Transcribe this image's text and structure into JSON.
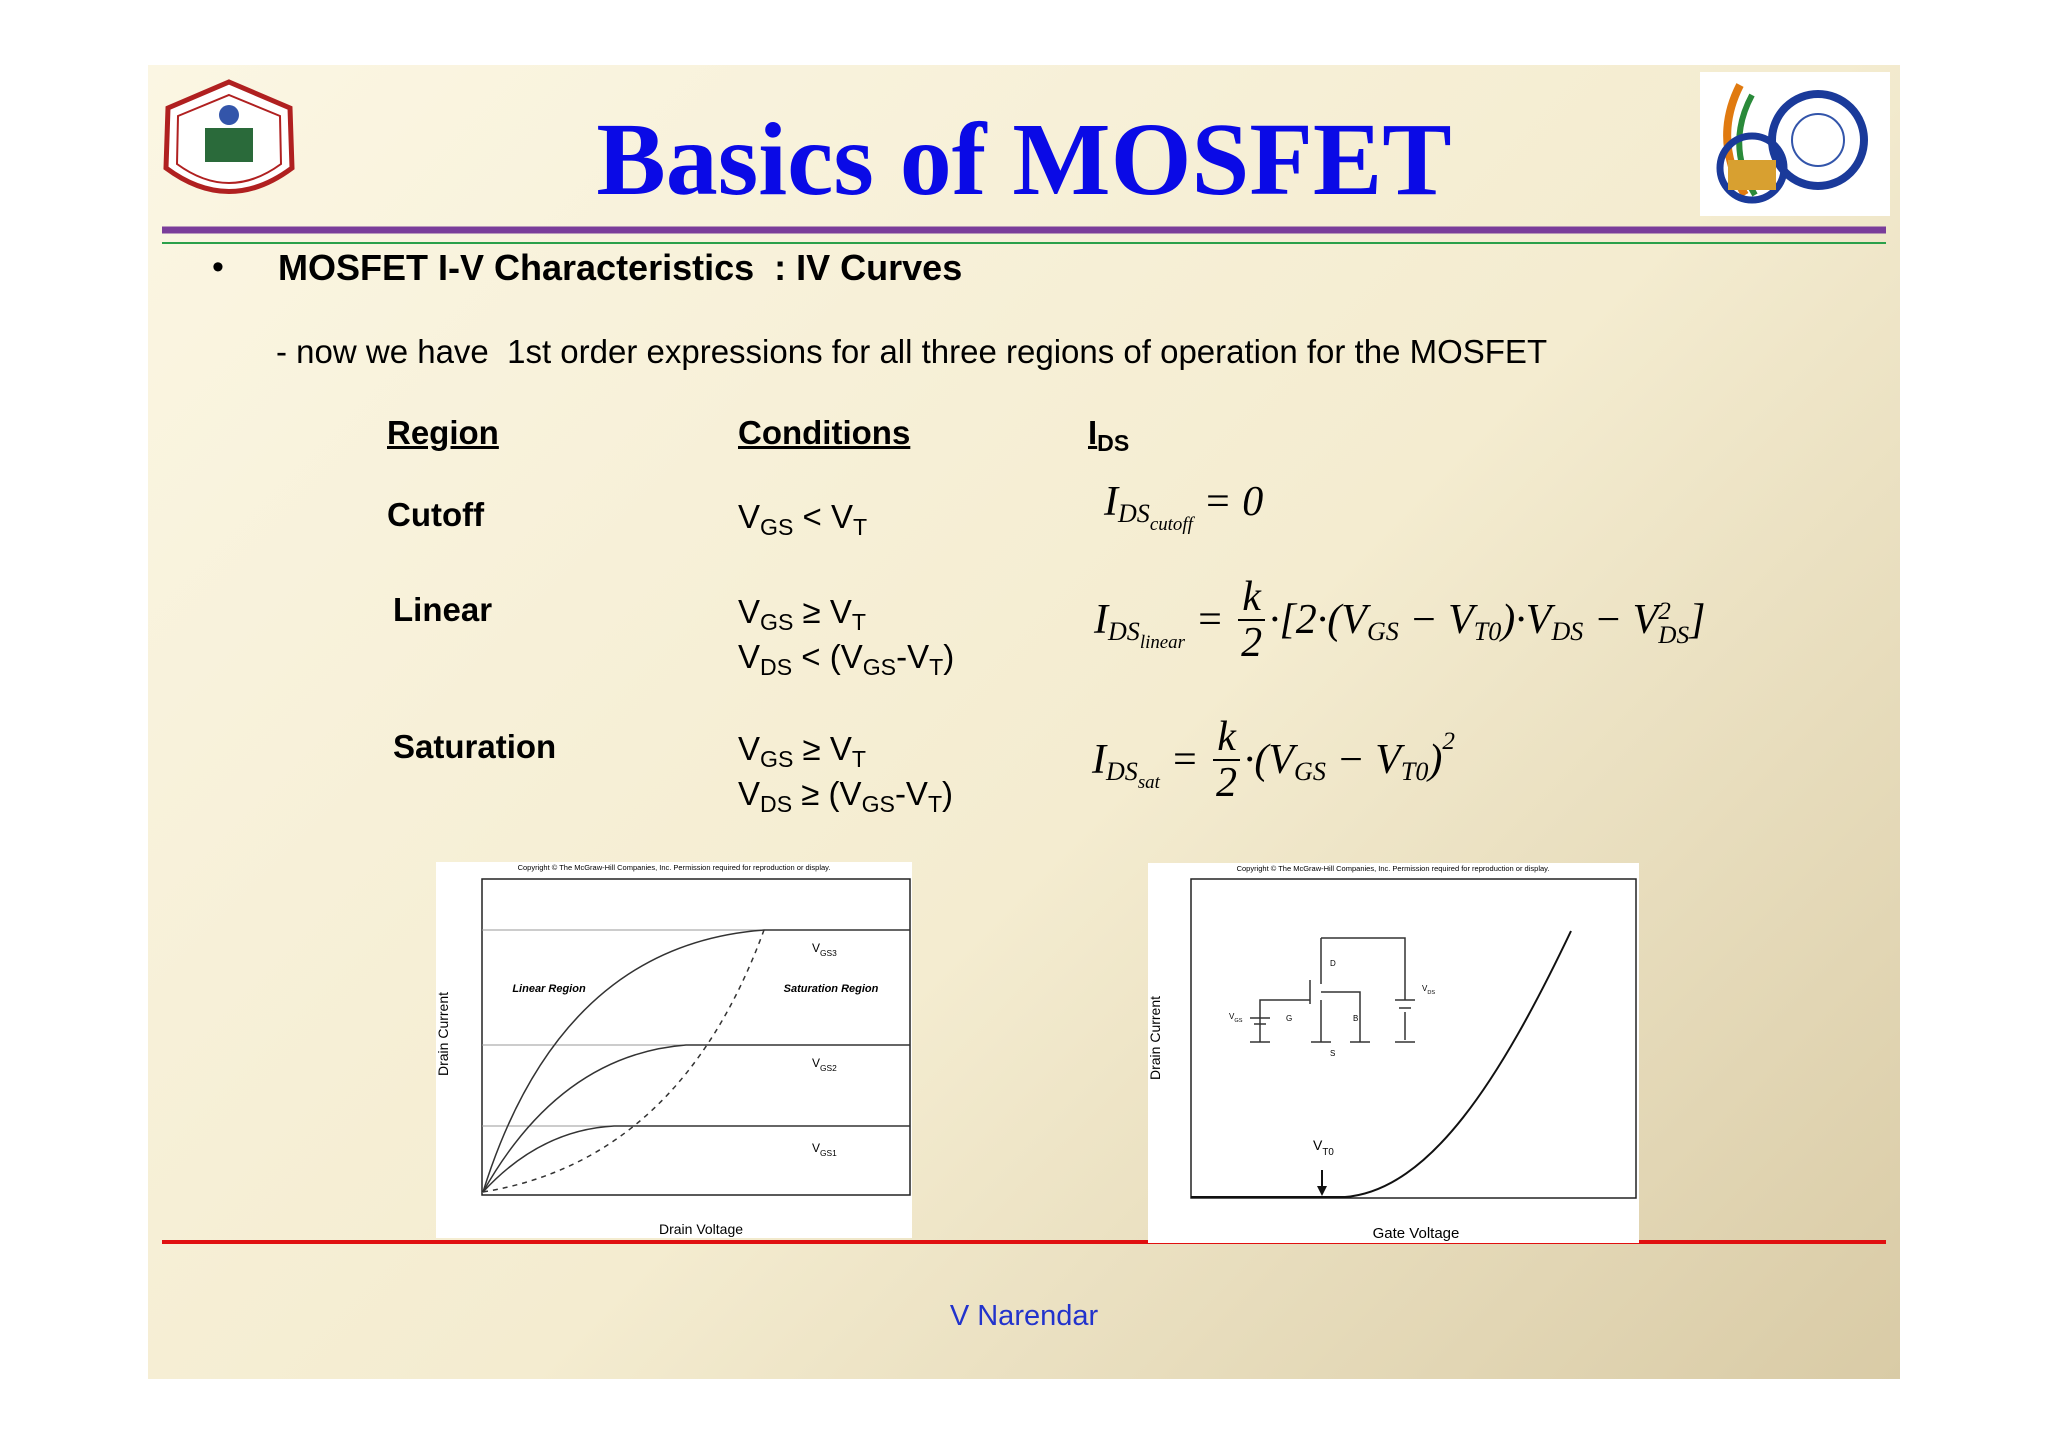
{
  "header": {
    "title": "Basics of MOSFET"
  },
  "bullet": {
    "marker": "•",
    "heading": "MOSFET I-V Characteristics  : IV Curves",
    "subtext": "- now we have  1st order expressions for all three regions of operation for the MOSFET"
  },
  "table": {
    "headers": [
      "Region",
      "Conditions"
    ],
    "ids_header": [
      "I",
      "DS"
    ],
    "rows": [
      {
        "region": "Cutoff",
        "conditions": [
          [
            "V",
            "GS",
            " < V",
            "T"
          ]
        ],
        "formula": [
          {
            "text": "I",
            "style": "base"
          },
          {
            "text": "DS",
            "style": "sub"
          },
          {
            "text": "cutoff",
            "style": "subsub"
          },
          {
            "text": " = 0",
            "style": "base"
          }
        ]
      },
      {
        "region": "Linear",
        "conditions": [
          [
            "V",
            "GS",
            " ≥ V",
            "T"
          ],
          [
            "V",
            "DS",
            " < (V",
            "GS",
            "-V",
            "T",
            ")"
          ]
        ],
        "formula": [
          {
            "text": "I",
            "style": "base"
          },
          {
            "text": "DS",
            "style": "sub"
          },
          {
            "text": "linear",
            "style": "subsub"
          },
          {
            "text": " = ",
            "style": "base"
          },
          {
            "num": "k",
            "den": "2"
          },
          {
            "text": "·[2·(V",
            "style": "base"
          },
          {
            "text": "GS",
            "style": "sub"
          },
          {
            "text": " − V",
            "style": "base"
          },
          {
            "text": "T0",
            "style": "sub"
          },
          {
            "text": ")·V",
            "style": "base"
          },
          {
            "text": "DS",
            "style": "sub"
          },
          {
            "text": " − V",
            "style": "base"
          },
          {
            "sup": "2",
            "sub": "DS"
          },
          {
            "text": "]",
            "style": "base"
          }
        ]
      },
      {
        "region": "Saturation",
        "conditions": [
          [
            "V",
            "GS",
            " ≥ V",
            "T"
          ],
          [
            "V",
            "DS",
            " ≥ (V",
            "GS",
            "-V",
            "T",
            ")"
          ]
        ],
        "formula": [
          {
            "text": "I",
            "style": "base"
          },
          {
            "text": "DS",
            "style": "sub"
          },
          {
            "text": "sat",
            "style": "subsub"
          },
          {
            "text": " = ",
            "style": "base"
          },
          {
            "num": "k",
            "den": "2"
          },
          {
            "text": "·(V",
            "style": "base"
          },
          {
            "text": "GS",
            "style": "sub"
          },
          {
            "text": " − V",
            "style": "base"
          },
          {
            "text": "T0",
            "style": "sub"
          },
          {
            "text": ")",
            "style": "base"
          },
          {
            "text": "2",
            "style": "sup"
          }
        ]
      }
    ]
  },
  "figures": [
    {
      "copyright": "Copyright © The McGraw-Hill Companies, Inc. Permission required for reproduction or display.",
      "y_label": "Drain Current",
      "x_label": "Drain Voltage",
      "region_labels": [
        "Linear Region",
        "Saturation Region"
      ],
      "curve_labels": [
        [
          "V",
          "GS3"
        ],
        [
          "V",
          "GS2"
        ],
        [
          "V",
          "GS1"
        ]
      ]
    },
    {
      "copyright": "Copyright © The McGraw-Hill Companies, Inc. Permission required for reproduction or display.",
      "y_label": "Drain Current",
      "x_label": "Gate Voltage",
      "vt_label": [
        "V",
        "T0"
      ],
      "circuit_labels": [
        "G",
        "D",
        "B",
        "S"
      ],
      "vds_label": [
        "V",
        "DS"
      ],
      "vgs_label": [
        "V",
        "GS"
      ]
    }
  ],
  "footer": {
    "author": "V Narendar"
  }
}
